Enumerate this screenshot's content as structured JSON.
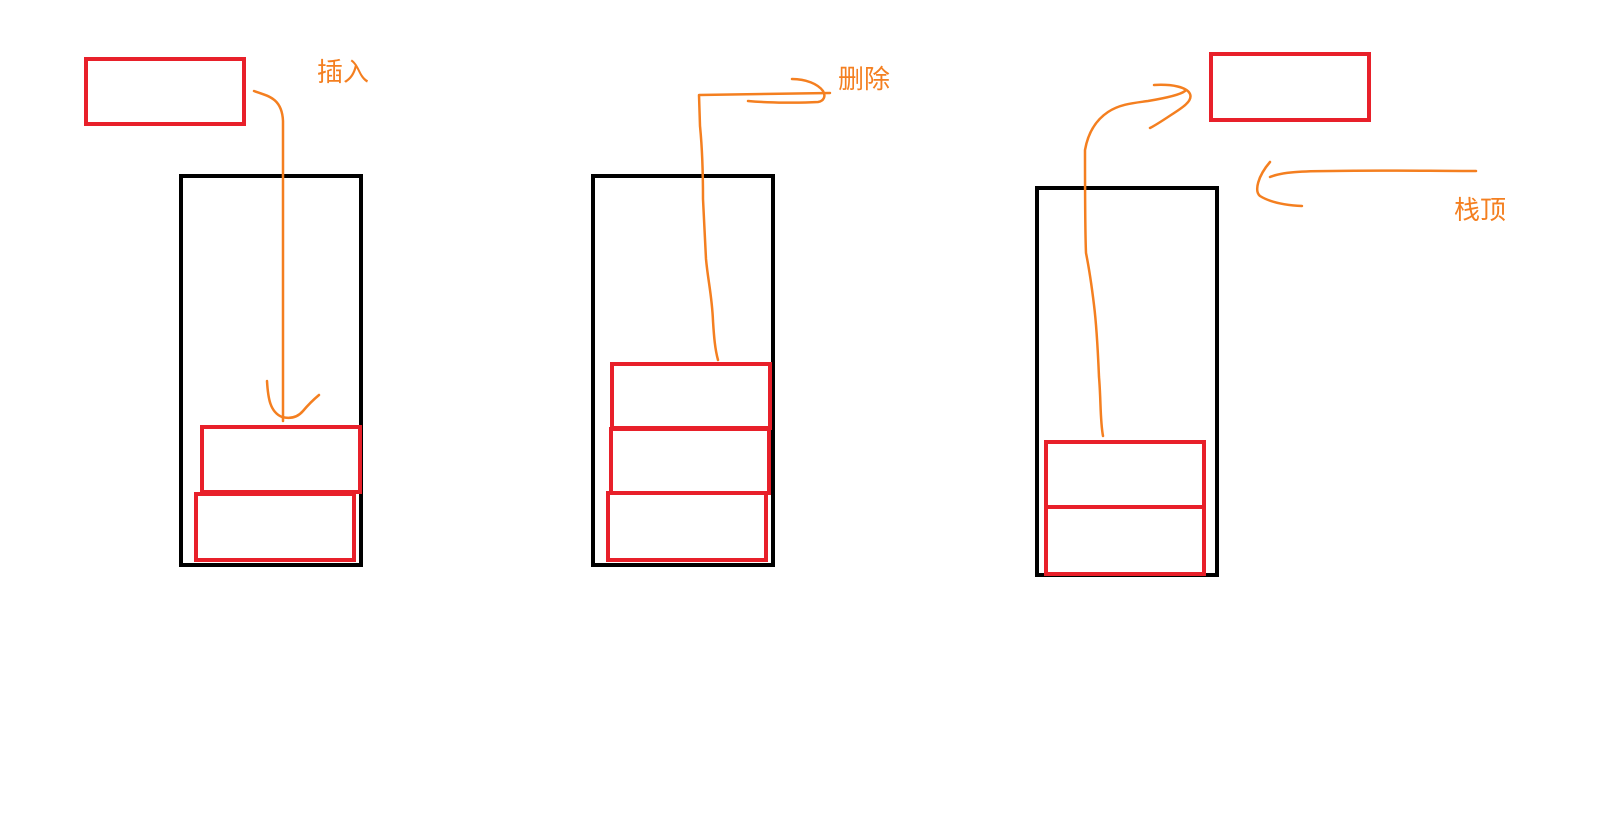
{
  "labels": {
    "insert": "插入",
    "delete": "删除",
    "top": "栈顶"
  },
  "colors": {
    "stack_outline": "#000000",
    "block": "#e8202a",
    "annotation": "#f47f20"
  },
  "stacks": [
    {
      "name": "insert-stack",
      "blocks_inside": 2,
      "incoming_block": true
    },
    {
      "name": "delete-stack",
      "blocks_inside": 3,
      "outgoing_block": false
    },
    {
      "name": "top-stack",
      "blocks_inside": 2,
      "popped_block": true
    }
  ]
}
